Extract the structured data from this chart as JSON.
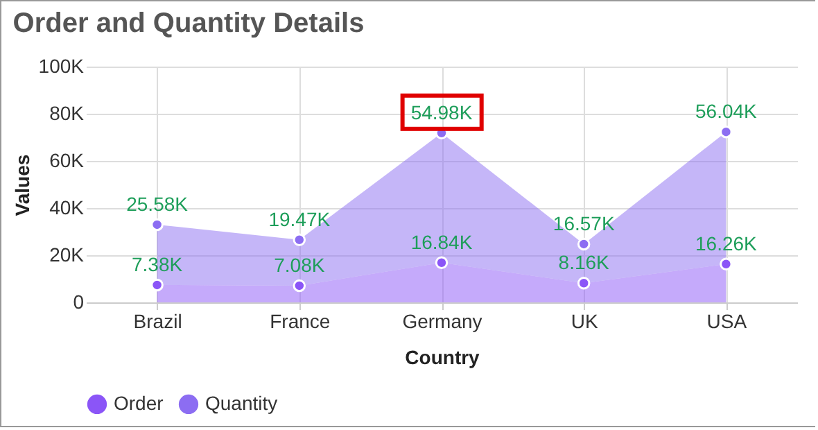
{
  "chart_data": {
    "type": "area",
    "title": "Order and Quantity Details",
    "xlabel": "Country",
    "ylabel": "Values",
    "categories": [
      "Brazil",
      "France",
      "Germany",
      "UK",
      "USA"
    ],
    "stacked": true,
    "series": [
      {
        "name": "Order",
        "color": "#8b55f7",
        "values": [
          7380,
          7080,
          16840,
          8160,
          16260
        ],
        "value_labels": [
          "7.38K",
          "7.08K",
          "16.84K",
          "8.16K",
          "16.26K"
        ]
      },
      {
        "name": "Quantity",
        "color": "#8c6df2",
        "values": [
          25580,
          19470,
          54980,
          16570,
          56040
        ],
        "value_labels": [
          "25.58K",
          "19.47K",
          "54.98K",
          "16.57K",
          "56.04K"
        ]
      }
    ],
    "ylim": [
      0,
      100000
    ],
    "yticks": [
      {
        "value": 0,
        "label": "0"
      },
      {
        "value": 20000,
        "label": "20K"
      },
      {
        "value": 40000,
        "label": "40K"
      },
      {
        "value": 60000,
        "label": "60K"
      },
      {
        "value": 80000,
        "label": "80K"
      },
      {
        "value": 100000,
        "label": "100K"
      }
    ],
    "grid": true,
    "legend": "bottom",
    "marker": "circle"
  }
}
